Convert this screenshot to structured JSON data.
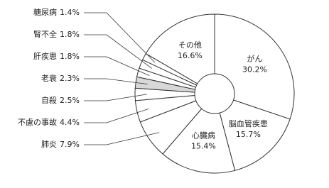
{
  "chart_data": {
    "type": "pie",
    "categories": [
      "がん",
      "脳血管疾患",
      "心臓病",
      "肺炎",
      "不慮の事故",
      "自殺",
      "老衰",
      "肝疾患",
      "腎不全",
      "糖尿病",
      "その他"
    ],
    "values": [
      30.2,
      15.7,
      15.4,
      7.9,
      4.4,
      2.5,
      2.3,
      1.8,
      1.8,
      1.4,
      16.6
    ],
    "value_labels": [
      "30.2%",
      "15.7%",
      "15.4%",
      "7.9%",
      "4.4%",
      "2.5%",
      "2.3%",
      "1.8%",
      "1.8%",
      "1.4%",
      "16.6%"
    ],
    "color": "#ffffff"
  }
}
